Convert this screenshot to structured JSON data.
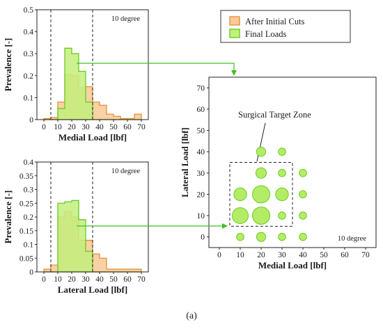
{
  "colors": {
    "orange_edge": "#e8913a",
    "orange_fill": "#f8cc9a",
    "green_edge": "#66cc22",
    "green_fill": "#c4ef7c",
    "green_dot": "#b5ec66",
    "arrow": "#3fbf1f"
  },
  "legend": {
    "items": [
      {
        "label": "After Initial Cuts",
        "color_key": "orange"
      },
      {
        "label": "Final Loads",
        "color_key": "green"
      }
    ]
  },
  "caption": "(a)",
  "chart_data": [
    {
      "id": "medial_hist",
      "type": "bar",
      "xlabel": "Medial Load [lbf]",
      "ylabel": "Prevalence [-]",
      "annotation": "10 degree",
      "xlim": [
        -5,
        75
      ],
      "ylim": [
        0,
        0.5
      ],
      "xticks": [
        0,
        10,
        20,
        30,
        40,
        50,
        60,
        70
      ],
      "yticks": [
        0,
        0.1,
        0.2,
        0.3,
        0.4,
        0.5
      ],
      "ytick_labels": [
        "0",
        "0.1",
        "0.2",
        "0.3",
        "0.4",
        "0.5"
      ],
      "vlines": [
        5,
        35
      ],
      "bin_edges": [
        0,
        5,
        10,
        15,
        20,
        25,
        30,
        35,
        40,
        45,
        50,
        55,
        60,
        65,
        70
      ],
      "series": [
        {
          "name": "After Initial Cuts",
          "values": [
            0.005,
            0.01,
            0.08,
            0.205,
            0.2,
            0.145,
            0.15,
            0.08,
            0.065,
            0.025,
            0.015,
            0.005,
            0.005,
            0.025
          ]
        },
        {
          "name": "Final Loads",
          "values": [
            0,
            0,
            0.05,
            0.325,
            0.3,
            0.22,
            0.08,
            0,
            0,
            0,
            0,
            0,
            0,
            0
          ]
        }
      ]
    },
    {
      "id": "lateral_hist",
      "type": "bar",
      "xlabel": "Lateral Load [lbf]",
      "ylabel": "Prevalence [-]",
      "annotation": "10 degree",
      "xlim": [
        -5,
        75
      ],
      "ylim": [
        0,
        0.4
      ],
      "xticks": [
        0,
        10,
        20,
        30,
        40,
        50,
        60,
        70
      ],
      "yticks": [
        0,
        0.05,
        0.1,
        0.15,
        0.2,
        0.25,
        0.3,
        0.35,
        0.4
      ],
      "ytick_labels": [
        "0",
        "0.05",
        "0.1",
        "0.15",
        "0.2",
        "0.25",
        "0.3",
        "0.35",
        "0.4"
      ],
      "vlines": [
        5,
        35
      ],
      "bin_edges": [
        0,
        5,
        10,
        15,
        20,
        25,
        30,
        35,
        40,
        45,
        50,
        55,
        60,
        65,
        70
      ],
      "series": [
        {
          "name": "After Initial Cuts",
          "values": [
            0.01,
            0.025,
            0.2,
            0.22,
            0.2,
            0.115,
            0.115,
            0.065,
            0.05,
            0.01,
            0.01,
            0.01,
            0.01,
            0.01
          ]
        },
        {
          "name": "Final Loads",
          "values": [
            0,
            0,
            0.25,
            0.255,
            0.26,
            0.19,
            0.075,
            0,
            0,
            0,
            0,
            0,
            0,
            0
          ]
        }
      ]
    },
    {
      "id": "scatter",
      "type": "scatter",
      "xlabel": "Medial Load [lbf]",
      "ylabel": "Lateral Load [lbf]",
      "annotation": "10 degree",
      "zone_label": "Surgical Target Zone",
      "xlim": [
        -5,
        75
      ],
      "ylim": [
        -5,
        75
      ],
      "xticks": [
        0,
        10,
        20,
        30,
        40,
        50,
        60,
        70
      ],
      "yticks": [
        0,
        10,
        20,
        30,
        40,
        50,
        60,
        70
      ],
      "zone": {
        "x": [
          5,
          35
        ],
        "y": [
          5,
          35
        ]
      },
      "points": [
        {
          "x": 10,
          "y": 0,
          "size": 1
        },
        {
          "x": 20,
          "y": 0,
          "size": 2
        },
        {
          "x": 30,
          "y": 0,
          "size": 1
        },
        {
          "x": 40,
          "y": 0,
          "size": 1
        },
        {
          "x": 10,
          "y": 10,
          "size": 9
        },
        {
          "x": 20,
          "y": 10,
          "size": 11
        },
        {
          "x": 30,
          "y": 10,
          "size": 1
        },
        {
          "x": 40,
          "y": 10,
          "size": 1
        },
        {
          "x": 10,
          "y": 20,
          "size": 5
        },
        {
          "x": 20,
          "y": 20,
          "size": 11
        },
        {
          "x": 30,
          "y": 20,
          "size": 5
        },
        {
          "x": 40,
          "y": 20,
          "size": 1
        },
        {
          "x": 20,
          "y": 30,
          "size": 3
        },
        {
          "x": 30,
          "y": 30,
          "size": 1
        },
        {
          "x": 40,
          "y": 30,
          "size": 1
        },
        {
          "x": 20,
          "y": 40,
          "size": 2
        },
        {
          "x": 30,
          "y": 40,
          "size": 1
        }
      ]
    }
  ]
}
